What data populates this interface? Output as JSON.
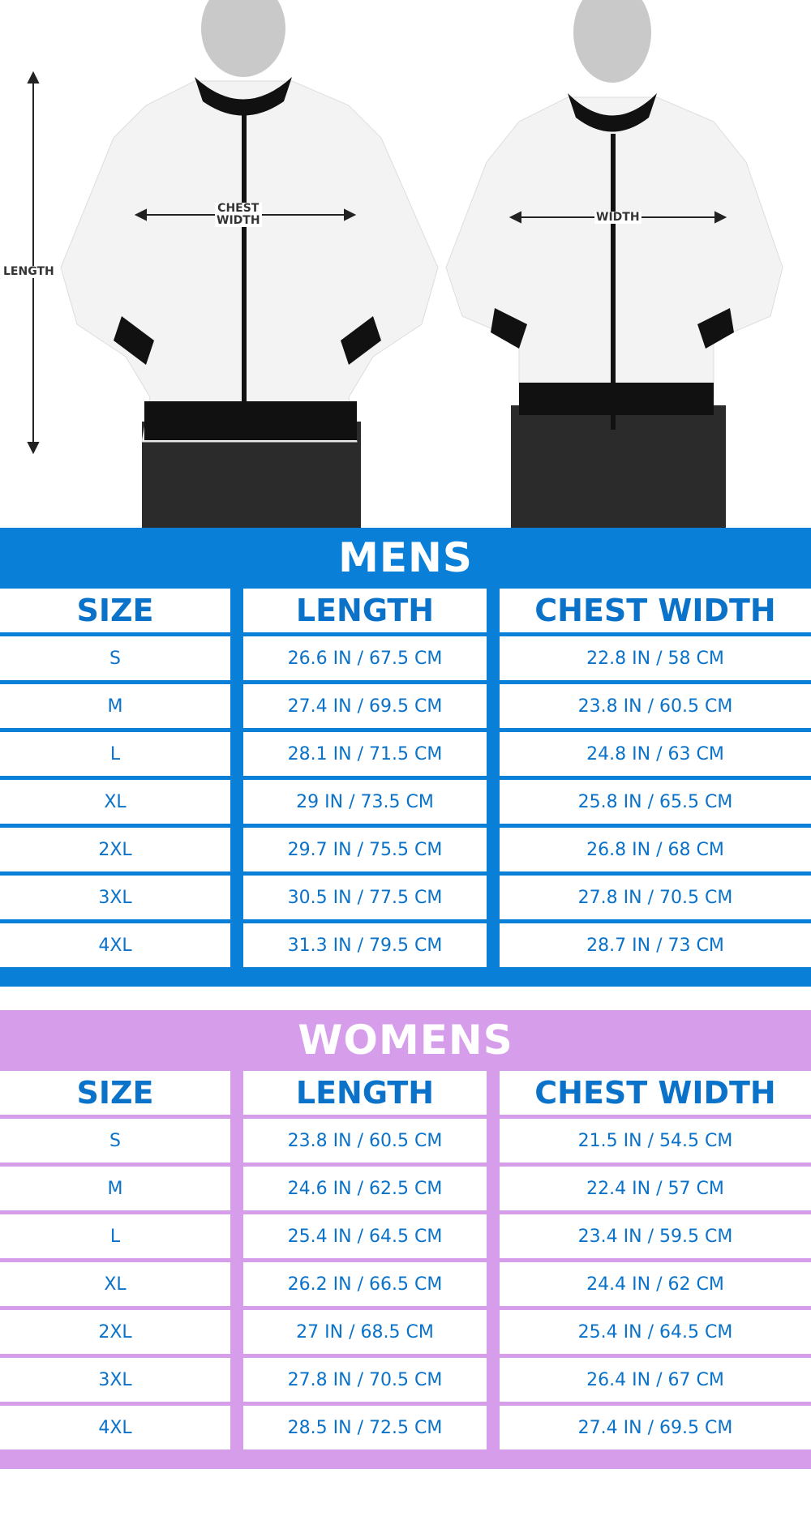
{
  "photo": {
    "mens_labels": {
      "length": "LENGTH",
      "chest_width": "CHEST\nWIDTH"
    },
    "womens_labels": {
      "width": "WIDTH"
    }
  },
  "colors": {
    "mens_band": "#0a7fd7",
    "womens_band": "#d69deb",
    "text": "#0a72c9"
  },
  "mens": {
    "title": "MENS",
    "headers": [
      "SIZE",
      "LENGTH",
      "CHEST WIDTH"
    ],
    "rows": [
      [
        "S",
        "26.6 IN / 67.5 CM",
        "22.8 IN / 58 CM"
      ],
      [
        "M",
        "27.4 IN / 69.5 CM",
        "23.8 IN / 60.5 CM"
      ],
      [
        "L",
        "28.1 IN / 71.5 CM",
        "24.8 IN / 63 CM"
      ],
      [
        "XL",
        "29 IN / 73.5 CM",
        "25.8 IN / 65.5 CM"
      ],
      [
        "2XL",
        "29.7 IN / 75.5 CM",
        "26.8 IN / 68 CM"
      ],
      [
        "3XL",
        "30.5 IN / 77.5 CM",
        "27.8 IN / 70.5 CM"
      ],
      [
        "4XL",
        "31.3 IN / 79.5 CM",
        "28.7 IN / 73 CM"
      ]
    ]
  },
  "womens": {
    "title": "WOMENS",
    "headers": [
      "SIZE",
      "LENGTH",
      "CHEST WIDTH"
    ],
    "rows": [
      [
        "S",
        "23.8 IN / 60.5 CM",
        "21.5 IN / 54.5 CM"
      ],
      [
        "M",
        "24.6 IN / 62.5 CM",
        "22.4 IN /  57 CM"
      ],
      [
        "L",
        "25.4 IN / 64.5 CM",
        "23.4 IN / 59.5 CM"
      ],
      [
        "XL",
        "26.2 IN / 66.5 CM",
        "24.4 IN / 62 CM"
      ],
      [
        "2XL",
        "27 IN / 68.5 CM",
        "25.4 IN / 64.5 CM"
      ],
      [
        "3XL",
        "27.8 IN / 70.5 CM",
        "26.4 IN / 67 CM"
      ],
      [
        "4XL",
        "28.5 IN / 72.5 CM",
        "27.4 IN / 69.5 CM"
      ]
    ]
  }
}
